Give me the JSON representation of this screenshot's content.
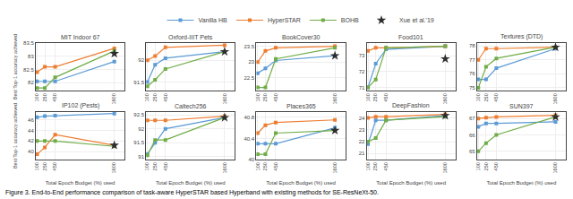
{
  "caption": "Figure 3. End-to-End performance comparison of task-aware HyperSTAR based Hyperband with existing methods for SE-ResNeXt-50.",
  "chart_data": [
    {
      "type": "line",
      "title": "MIT Indoor 67",
      "y_label": "Best Top-1 accuracy achieved",
      "x": [
        100,
        250,
        450,
        1600
      ],
      "xlim": [
        75,
        1800
      ],
      "xticks": [
        100,
        250,
        450,
        1600
      ],
      "ylim": [
        81.7,
        83.5
      ],
      "yticks": [
        82,
        82.5,
        83,
        83.5
      ],
      "grid": true,
      "legend": "top",
      "series": [
        {
          "name": "Vanilla HB",
          "color": "#5b9bd5",
          "marker": "square",
          "values": [
            82.05,
            82.05,
            82.05,
            82.8
          ]
        },
        {
          "name": "HyperSTAR",
          "color": "#ed7d31",
          "marker": "square",
          "values": [
            82.4,
            82.6,
            82.6,
            83.3
          ]
        },
        {
          "name": "BOHB",
          "color": "#70ad47",
          "marker": "square",
          "values": [
            81.8,
            81.8,
            82.2,
            83.2
          ]
        },
        {
          "name": "Xue et al.'19",
          "color": "#2e2e2e",
          "marker": "star",
          "type": "scatter",
          "values": [
            null,
            null,
            null,
            83.1
          ]
        }
      ]
    },
    {
      "type": "line",
      "title": "Oxford-IIIT Pets",
      "x": [
        100,
        250,
        450,
        1600
      ],
      "xlim": [
        75,
        1800
      ],
      "xticks": [
        100,
        250,
        450,
        1600
      ],
      "ylim": [
        91.3,
        92.4
      ],
      "yticks": [
        91.5,
        92
      ],
      "grid": true,
      "legend": "top",
      "series": [
        {
          "name": "Vanilla HB",
          "color": "#5b9bd5",
          "marker": "square",
          "values": [
            91.5,
            91.9,
            92.05,
            92.2
          ]
        },
        {
          "name": "HyperSTAR",
          "color": "#ed7d31",
          "marker": "square",
          "values": [
            92.0,
            92.1,
            92.3,
            92.35
          ]
        },
        {
          "name": "BOHB",
          "color": "#70ad47",
          "marker": "square",
          "values": [
            91.4,
            91.55,
            91.8,
            92.2
          ]
        },
        {
          "name": "Xue et al.'19",
          "color": "#2e2e2e",
          "marker": "star",
          "type": "scatter",
          "values": [
            null,
            null,
            null,
            92.2
          ]
        }
      ]
    },
    {
      "type": "line",
      "title": "BookCover30",
      "x": [
        100,
        250,
        450,
        1600
      ],
      "xlim": [
        75,
        1800
      ],
      "xticks": [
        100,
        250,
        450,
        1600
      ],
      "ylim": [
        22.1,
        23.6
      ],
      "yticks": [
        22.5,
        23,
        23.5
      ],
      "grid": true,
      "legend": "top",
      "series": [
        {
          "name": "Vanilla HB",
          "color": "#5b9bd5",
          "marker": "square",
          "values": [
            22.65,
            22.8,
            23.05,
            23.2
          ]
        },
        {
          "name": "HyperSTAR",
          "color": "#ed7d31",
          "marker": "square",
          "values": [
            23.0,
            23.35,
            23.45,
            23.5
          ]
        },
        {
          "name": "BOHB",
          "color": "#70ad47",
          "marker": "square",
          "values": [
            22.2,
            22.2,
            23.1,
            23.45
          ]
        },
        {
          "name": "Xue et al.'19",
          "color": "#2e2e2e",
          "marker": "star",
          "type": "scatter",
          "values": [
            null,
            null,
            null,
            23.2
          ]
        }
      ]
    },
    {
      "type": "line",
      "title": "Food101",
      "x": [
        100,
        250,
        450,
        1600
      ],
      "xlim": [
        75,
        1800
      ],
      "xticks": [
        100,
        250,
        450,
        1600
      ],
      "ylim": [
        70.8,
        73.8
      ],
      "yticks": [
        71,
        72,
        73
      ],
      "grid": true,
      "legend": "top",
      "series": [
        {
          "name": "Vanilla HB",
          "color": "#5b9bd5",
          "marker": "square",
          "values": [
            71.0,
            72.5,
            73.4,
            73.6
          ]
        },
        {
          "name": "HyperSTAR",
          "color": "#ed7d31",
          "marker": "square",
          "values": [
            73.3,
            73.5,
            73.5,
            73.6
          ]
        },
        {
          "name": "BOHB",
          "color": "#70ad47",
          "marker": "square",
          "values": [
            71.0,
            71.5,
            73.5,
            73.6
          ]
        },
        {
          "name": "Xue et al.'19",
          "color": "#2e2e2e",
          "marker": "star",
          "type": "scatter",
          "values": [
            null,
            null,
            null,
            72.8
          ]
        }
      ]
    },
    {
      "type": "line",
      "title": "Textures (DTD)",
      "x": [
        100,
        250,
        450,
        1600
      ],
      "xlim": [
        75,
        1800
      ],
      "xticks": [
        100,
        250,
        450,
        1600
      ],
      "ylim": [
        74.8,
        78.2
      ],
      "yticks": [
        75,
        76,
        77,
        78
      ],
      "grid": true,
      "legend": "top",
      "series": [
        {
          "name": "Vanilla HB",
          "color": "#5b9bd5",
          "marker": "square",
          "values": [
            75.6,
            75.6,
            76.4,
            77.8
          ]
        },
        {
          "name": "HyperSTAR",
          "color": "#ed7d31",
          "marker": "square",
          "values": [
            77.0,
            77.8,
            77.8,
            77.9
          ]
        },
        {
          "name": "BOHB",
          "color": "#70ad47",
          "marker": "square",
          "values": [
            75.0,
            76.5,
            77.1,
            77.9
          ]
        },
        {
          "name": "Xue et al.'19",
          "color": "#2e2e2e",
          "marker": "star",
          "type": "scatter",
          "values": [
            null,
            null,
            null,
            77.9
          ]
        }
      ]
    },
    {
      "type": "line",
      "title": "IP102 (Pests)",
      "x_label": "Total Epoch Budget (%) used",
      "y_label": "Best Top-1 accuracy achieved",
      "x": [
        100,
        250,
        450,
        1600
      ],
      "xlim": [
        75,
        1800
      ],
      "xticks": [
        100,
        250,
        450,
        1600
      ],
      "ylim": [
        38.5,
        47.5
      ],
      "yticks": [
        40,
        42,
        44,
        46
      ],
      "grid": true,
      "legend": "top",
      "series": [
        {
          "name": "Vanilla HB",
          "color": "#5b9bd5",
          "marker": "square",
          "values": [
            46.5,
            46.7,
            46.8,
            47.2
          ]
        },
        {
          "name": "HyperSTAR",
          "color": "#ed7d31",
          "marker": "square",
          "values": [
            39.5,
            40.8,
            43.2,
            41.2
          ]
        },
        {
          "name": "BOHB",
          "color": "#70ad47",
          "marker": "square",
          "values": [
            42.0,
            42.0,
            42.0,
            41.0
          ]
        },
        {
          "name": "Xue et al.'19",
          "color": "#2e2e2e",
          "marker": "star",
          "type": "scatter",
          "values": [
            null,
            null,
            null,
            41.2
          ]
        }
      ]
    },
    {
      "type": "line",
      "title": "Caltech256",
      "x_label": "Total Epoch Budget (%) used",
      "x": [
        100,
        250,
        450,
        1600
      ],
      "xlim": [
        75,
        1800
      ],
      "xticks": [
        100,
        250,
        450,
        1600
      ],
      "ylim": [
        90.9,
        92.6
      ],
      "yticks": [
        91,
        91.5,
        92,
        92.5
      ],
      "grid": true,
      "legend": "top",
      "series": [
        {
          "name": "Vanilla HB",
          "color": "#5b9bd5",
          "marker": "square",
          "values": [
            91.1,
            91.5,
            92.0,
            92.4
          ]
        },
        {
          "name": "HyperSTAR",
          "color": "#ed7d31",
          "marker": "square",
          "values": [
            92.3,
            92.3,
            92.3,
            92.45
          ]
        },
        {
          "name": "BOHB",
          "color": "#70ad47",
          "marker": "square",
          "values": [
            91.05,
            91.6,
            91.6,
            92.4
          ]
        },
        {
          "name": "Xue et al.'19",
          "color": "#2e2e2e",
          "marker": "star",
          "type": "scatter",
          "values": [
            null,
            null,
            null,
            92.4
          ]
        }
      ]
    },
    {
      "type": "line",
      "title": "Places365",
      "x_label": "Total Epoch Budget (%) used",
      "x": [
        100,
        250,
        450,
        1600
      ],
      "xlim": [
        75,
        1800
      ],
      "xticks": [
        100,
        250,
        450,
        1600
      ],
      "ylim": [
        40.0,
        40.9
      ],
      "yticks": [
        40,
        40.4,
        40.8
      ],
      "grid": true,
      "legend": "top",
      "series": [
        {
          "name": "Vanilla HB",
          "color": "#5b9bd5",
          "marker": "square",
          "values": [
            40.3,
            40.3,
            40.3,
            40.6
          ]
        },
        {
          "name": "HyperSTAR",
          "color": "#ed7d31",
          "marker": "square",
          "values": [
            40.5,
            40.65,
            40.7,
            40.75
          ]
        },
        {
          "name": "BOHB",
          "color": "#70ad47",
          "marker": "square",
          "values": [
            40.1,
            40.1,
            40.5,
            40.55
          ]
        },
        {
          "name": "Xue et al.'19",
          "color": "#2e2e2e",
          "marker": "star",
          "type": "scatter",
          "values": [
            null,
            null,
            null,
            40.55
          ]
        }
      ]
    },
    {
      "type": "line",
      "title": "DeepFashion",
      "x_label": "Total Epoch Budget (%) used",
      "x": [
        100,
        250,
        450,
        1600
      ],
      "xlim": [
        75,
        1800
      ],
      "xticks": [
        100,
        250,
        450,
        1600
      ],
      "ylim": [
        20.5,
        24.5
      ],
      "yticks": [
        21,
        22,
        23,
        24
      ],
      "grid": true,
      "legend": "top",
      "series": [
        {
          "name": "Vanilla HB",
          "color": "#5b9bd5",
          "marker": "square",
          "values": [
            21.8,
            23.8,
            23.8,
            24.2
          ]
        },
        {
          "name": "HyperSTAR",
          "color": "#ed7d31",
          "marker": "square",
          "values": [
            24.0,
            24.1,
            24.1,
            24.3
          ]
        },
        {
          "name": "BOHB",
          "color": "#70ad47",
          "marker": "square",
          "values": [
            22.0,
            22.3,
            23.8,
            24.1
          ]
        },
        {
          "name": "Xue et al.'19",
          "color": "#2e2e2e",
          "marker": "star",
          "type": "scatter",
          "values": [
            null,
            null,
            null,
            24.2
          ]
        }
      ]
    },
    {
      "type": "line",
      "title": "SUN397",
      "x_label": "Total Epoch Budget (%) used",
      "x": [
        100,
        250,
        450,
        1600
      ],
      "xlim": [
        75,
        1800
      ],
      "xticks": [
        100,
        250,
        450,
        1600
      ],
      "ylim": [
        64.5,
        67.4
      ],
      "yticks": [
        65,
        66,
        67
      ],
      "grid": true,
      "legend": "top",
      "series": [
        {
          "name": "Vanilla HB",
          "color": "#5b9bd5",
          "marker": "square",
          "values": [
            66.5,
            66.7,
            66.7,
            66.8
          ]
        },
        {
          "name": "HyperSTAR",
          "color": "#ed7d31",
          "marker": "square",
          "values": [
            67.0,
            67.05,
            67.1,
            67.2
          ]
        },
        {
          "name": "BOHB",
          "color": "#70ad47",
          "marker": "square",
          "values": [
            65.0,
            65.5,
            66.0,
            67.1
          ]
        },
        {
          "name": "Xue et al.'19",
          "color": "#2e2e2e",
          "marker": "star",
          "type": "scatter",
          "values": [
            null,
            null,
            null,
            67.1
          ]
        }
      ]
    }
  ]
}
